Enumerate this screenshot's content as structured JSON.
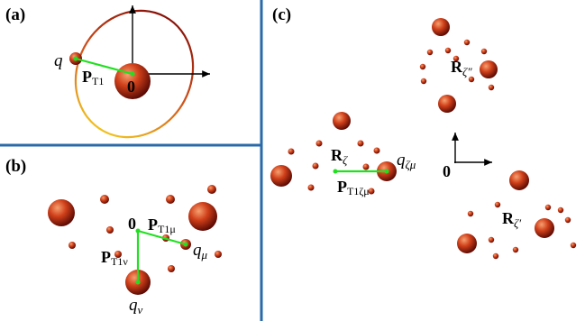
{
  "panels": [
    {
      "id": "a",
      "label": "(a)"
    },
    {
      "id": "b",
      "label": "(b)"
    },
    {
      "id": "c",
      "label": "(c)"
    }
  ],
  "origin_label": "0",
  "panel_a": {
    "charge": "q",
    "vector": {
      "main": "P",
      "sub": "T1"
    }
  },
  "panel_b": {
    "vector_mu": {
      "main": "P",
      "sub": "T1μ"
    },
    "vector_nu": {
      "main": "P",
      "sub": "T1ν"
    },
    "charge_mu": {
      "main": "q",
      "sub": "μ"
    },
    "charge_nu": {
      "main": "q",
      "sub": "ν"
    }
  },
  "panel_c": {
    "R_zeta": {
      "main": "R",
      "sub": "ζ"
    },
    "R_zeta_prime": {
      "main": "R",
      "sub": "ζ′"
    },
    "R_zeta_dprime": {
      "main": "R",
      "sub": "ζ″"
    },
    "vector": {
      "main": "P",
      "sub": "T1ζμ"
    },
    "charge": {
      "main": "q",
      "sub": "ζμ"
    }
  },
  "colors": {
    "sphere_highlight": "#f6a070",
    "sphere_mid": "#d0401a",
    "sphere_dark": "#5a0a04",
    "vector_green": "#20e020",
    "divider_blue": "#2a6aa8",
    "orbit_start": "#8a1208",
    "orbit_end": "#f0c020"
  }
}
